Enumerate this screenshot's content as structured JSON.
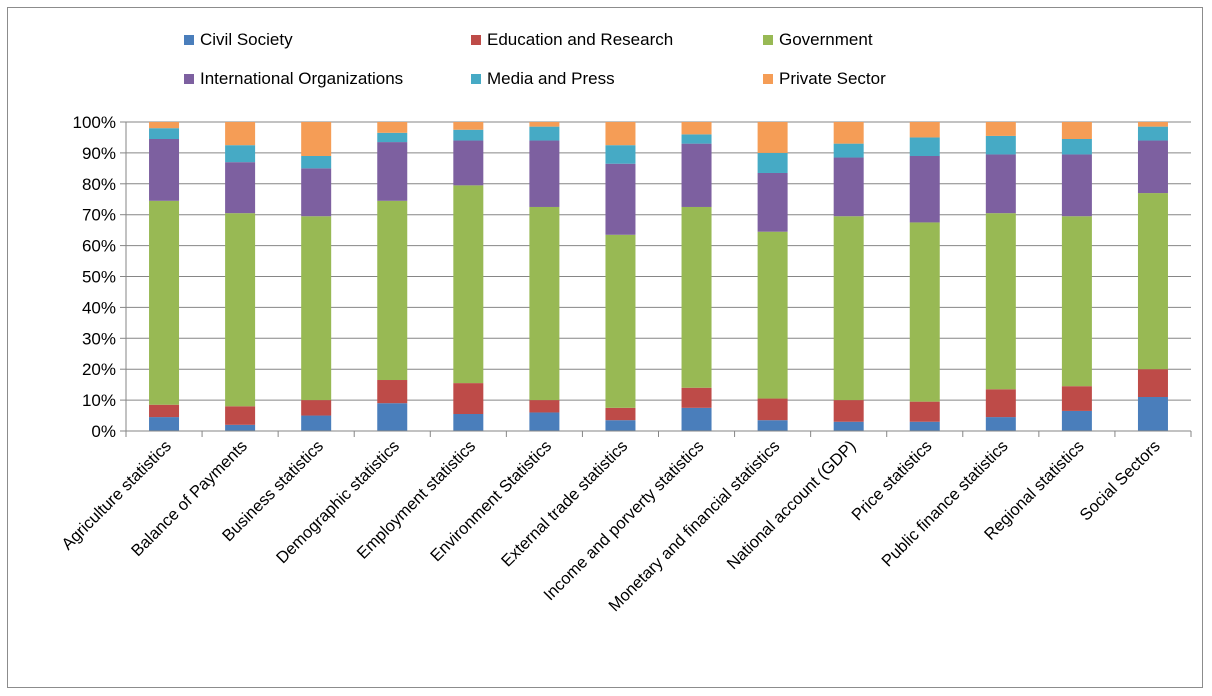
{
  "chart_data": {
    "type": "bar",
    "stacked": true,
    "percent_stacked": true,
    "categories": [
      "Agriculture statistics",
      "Balance of Payments",
      "Business statistics",
      "Demographic statistics",
      "Employment statistics",
      "Environment Statistics",
      "External trade statistics",
      "Income and porverty statistics",
      "Monetary and financial statistics",
      "National account (GDP)",
      "Price statistics",
      "Public finance statistics",
      "Regional statistics",
      "Social Sectors"
    ],
    "series": [
      {
        "name": "Civil Society",
        "color": "#4a7ebb",
        "values": [
          4.5,
          2,
          5,
          9,
          5.5,
          6,
          3.5,
          7.5,
          3.5,
          3,
          3,
          4.5,
          6.5,
          11
        ]
      },
      {
        "name": "Education and Research",
        "color": "#be4b48",
        "values": [
          4,
          6,
          5,
          7.5,
          10,
          4,
          4,
          6.5,
          7,
          7,
          6.5,
          9,
          8,
          9
        ]
      },
      {
        "name": "Government",
        "color": "#98b954",
        "values": [
          66,
          62.5,
          59.5,
          58,
          64,
          62.5,
          56,
          58.5,
          54,
          59.5,
          58,
          57,
          55,
          57
        ]
      },
      {
        "name": "International Organizations",
        "color": "#7d60a0",
        "values": [
          20,
          16.5,
          15.5,
          19,
          14.5,
          21.5,
          23,
          20.5,
          19,
          19,
          21.5,
          19,
          20,
          17
        ]
      },
      {
        "name": "Media and Press",
        "color": "#46aac5",
        "values": [
          3.5,
          5.5,
          4,
          3,
          3.5,
          4.5,
          6,
          3,
          6.5,
          4.5,
          6,
          6,
          5,
          4.5
        ]
      },
      {
        "name": "Private Sector",
        "color": "#f59d56",
        "values": [
          2,
          7.5,
          11,
          3.5,
          2.5,
          1.5,
          7.5,
          4,
          10,
          7,
          5,
          4.5,
          5.5,
          1.5
        ]
      }
    ],
    "y_ticks": [
      "0%",
      "10%",
      "20%",
      "30%",
      "40%",
      "50%",
      "60%",
      "70%",
      "80%",
      "90%",
      "100%"
    ],
    "ylim": [
      0,
      100
    ],
    "grid": "horizontal",
    "legend_position": "top",
    "gridline_color": "#868686",
    "axis_color": "#868686"
  }
}
